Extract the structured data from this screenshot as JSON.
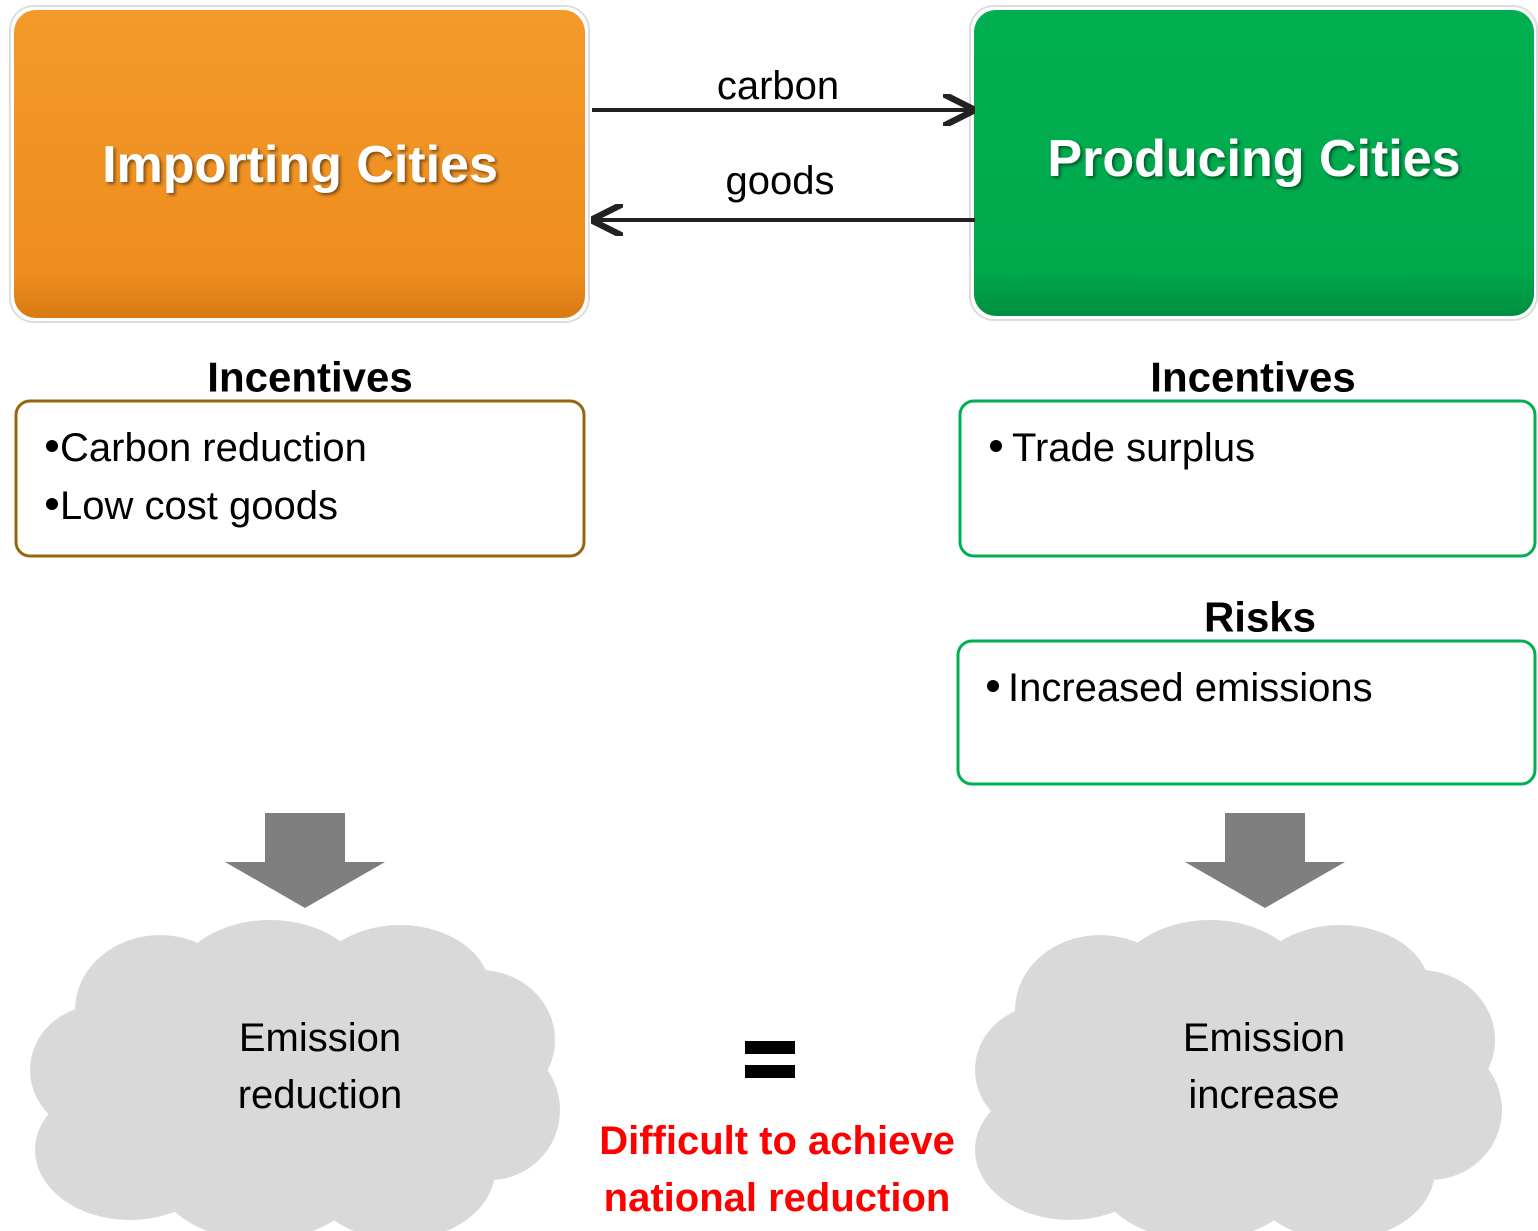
{
  "nodes": [
    {
      "label": "Importing Cities"
    },
    {
      "label": "Producing Cities"
    }
  ],
  "flows": [
    {
      "label": "carbon"
    },
    {
      "label": "goods"
    }
  ],
  "importing_incentives": {
    "heading": "Incentives",
    "items": [
      "Carbon reduction",
      "Low cost goods"
    ]
  },
  "producing_incentives": {
    "heading": "Incentives",
    "items": [
      "Trade surplus"
    ]
  },
  "producing_risks": {
    "heading": "Risks",
    "items": [
      "Increased emissions"
    ]
  },
  "outcomes": [
    {
      "lines": [
        "Emission",
        "reduction"
      ]
    },
    {
      "lines": [
        "Emission",
        "increase"
      ]
    }
  ],
  "conclusion": {
    "lines": [
      "Difficult to achieve",
      "national reduction"
    ]
  }
}
